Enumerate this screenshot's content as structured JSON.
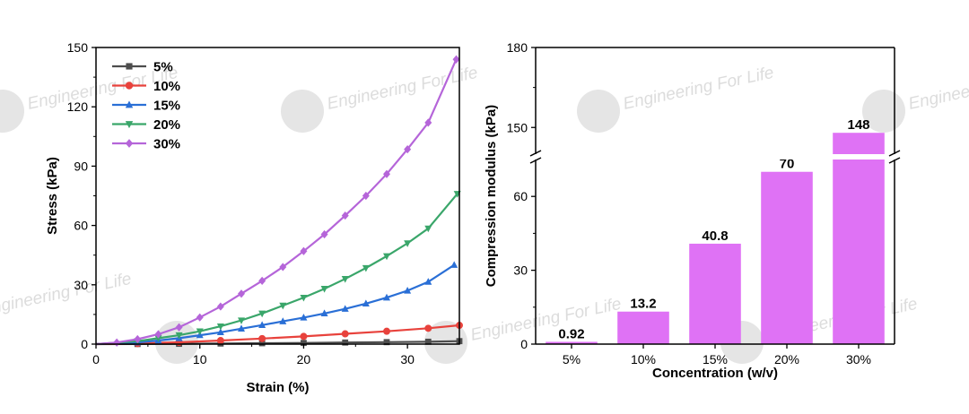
{
  "watermark": {
    "text": "Engineering For Life",
    "logo": "EF2"
  },
  "chart_data": [
    {
      "type": "line",
      "xlabel": "Strain (%)",
      "ylabel": "Stress (kPa)",
      "xlim": [
        0,
        35
      ],
      "ylim": [
        0,
        150
      ],
      "xticks": [
        0,
        10,
        20,
        30
      ],
      "yticks": [
        0,
        30,
        60,
        90,
        120,
        150
      ],
      "legend_position": "top-left",
      "series": [
        {
          "name": "5%",
          "color": "#4d4d4d",
          "marker": "square",
          "x": [
            0,
            4,
            8,
            12,
            16,
            20,
            24,
            28,
            32,
            35
          ],
          "y": [
            0,
            0.05,
            0.15,
            0.3,
            0.45,
            0.6,
            0.8,
            1.0,
            1.2,
            1.5
          ]
        },
        {
          "name": "10%",
          "color": "#e8423c",
          "marker": "circle",
          "x": [
            0,
            4,
            8,
            12,
            16,
            20,
            24,
            28,
            32,
            35
          ],
          "y": [
            0,
            0.3,
            0.9,
            1.8,
            2.8,
            3.9,
            5.2,
            6.5,
            8.0,
            9.5
          ]
        },
        {
          "name": "15%",
          "color": "#2a6fd6",
          "marker": "triangle-up",
          "x": [
            0,
            4,
            6,
            8,
            10,
            12,
            14,
            16,
            18,
            20,
            22,
            24,
            26,
            28,
            30,
            32,
            34.5
          ],
          "y": [
            0,
            0.8,
            1.8,
            3.0,
            4.5,
            6.0,
            7.8,
            9.6,
            11.5,
            13.4,
            15.5,
            17.8,
            20.5,
            23.5,
            27.0,
            31.5,
            40.0
          ]
        },
        {
          "name": "20%",
          "color": "#3aa66a",
          "marker": "triangle-down",
          "x": [
            0,
            4,
            6,
            8,
            10,
            12,
            14,
            16,
            18,
            20,
            22,
            24,
            26,
            28,
            30,
            32,
            34.8
          ],
          "y": [
            0,
            1.5,
            3.0,
            4.5,
            6.5,
            9.0,
            12.0,
            15.5,
            19.5,
            23.5,
            28.0,
            33.0,
            38.5,
            44.5,
            51.0,
            58.5,
            76.0
          ]
        },
        {
          "name": "30%",
          "color": "#b565d9",
          "marker": "diamond",
          "x": [
            0,
            2,
            4,
            6,
            8,
            10,
            12,
            14,
            16,
            18,
            20,
            22,
            24,
            26,
            28,
            30,
            32,
            34.7
          ],
          "y": [
            0,
            0.8,
            2.5,
            5.0,
            8.5,
            13.5,
            19.0,
            25.5,
            32.0,
            39.0,
            47.0,
            55.5,
            65.0,
            75.0,
            86.0,
            98.5,
            112.0,
            144.0
          ]
        }
      ]
    },
    {
      "type": "bar",
      "xlabel": "Concentration (w/v)",
      "ylabel": "Compression modulus (kPa)",
      "categories": [
        "5%",
        "10%",
        "15%",
        "20%",
        "30%"
      ],
      "values": [
        0.92,
        13.2,
        40.8,
        70,
        148
      ],
      "value_labels": [
        "0.92",
        "13.2",
        "40.8",
        "70",
        "148"
      ],
      "bar_color": "#df72f5",
      "ylim": [
        0,
        180
      ],
      "axis_break": [
        75,
        140
      ],
      "yticks": [
        0,
        30,
        60,
        150,
        180
      ]
    }
  ]
}
